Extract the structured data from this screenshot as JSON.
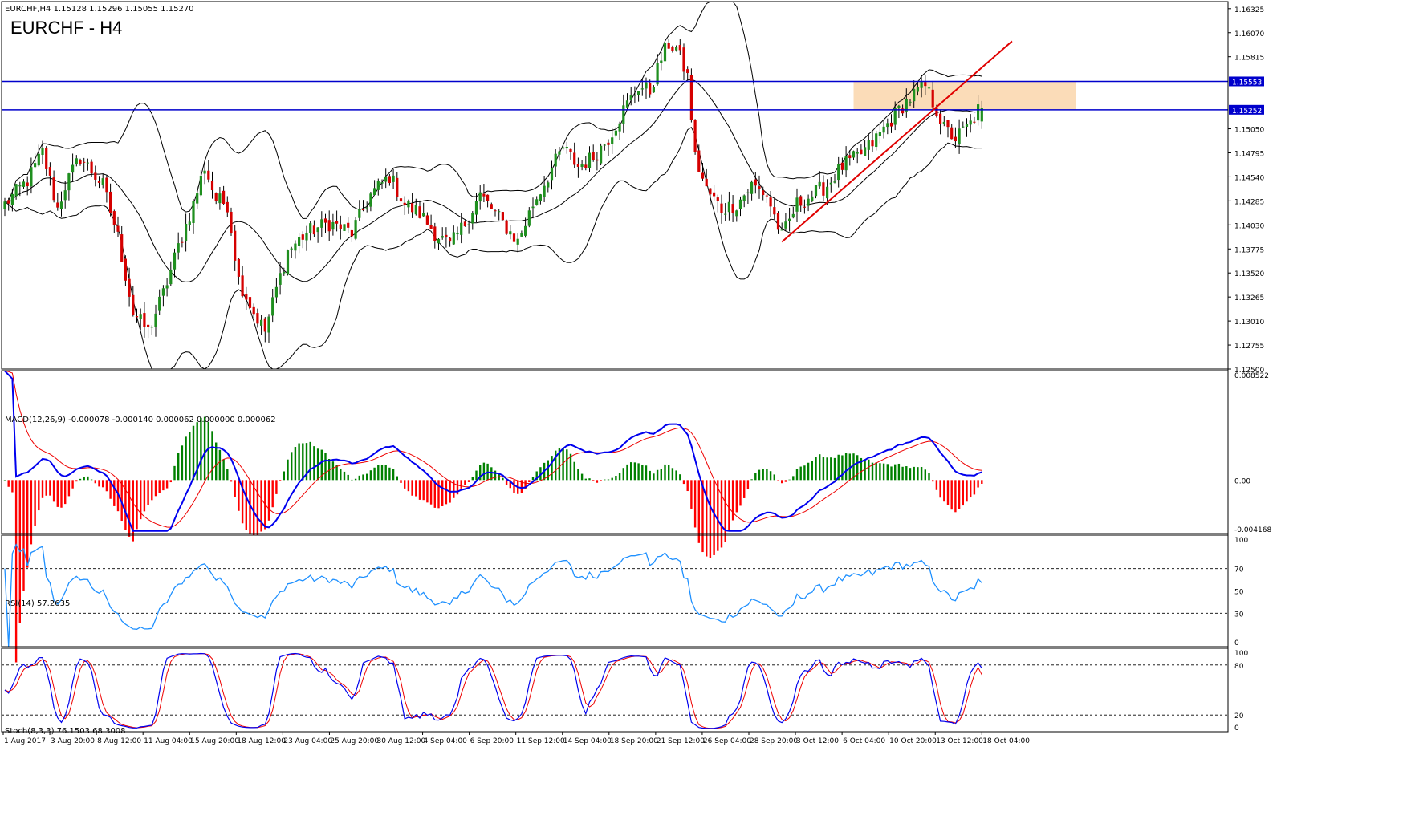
{
  "header": {
    "symbol_line": "EURCHF,H4  1.15128 1.15296 1.15055 1.15270",
    "big_title": "EURCHF - H4"
  },
  "panels": {
    "macd": {
      "label": "MACD(12,26,9) -0.000078 -0.000140 0.000062 0.000000 0.000062"
    },
    "rsi": {
      "label": "RSI(14) 57.2635"
    },
    "stoch": {
      "label": "Stoch(8,3,3) 76.1503 68.3008"
    }
  },
  "colors": {
    "bull_candle": "#1f8f1f",
    "bear_candle": "#d50000",
    "bands": "#000000",
    "hline": "#0000cc",
    "trendline": "#e00000",
    "zone": "#fbdcb8",
    "macd_main": "#0000ee",
    "macd_signal": "#ee0000",
    "hist_pos": "#008000",
    "hist_neg": "#ff0000",
    "rsi": "#1e90ff",
    "stoch_main": "#0000ee",
    "stoch_signal": "#ee0000"
  },
  "chart_data": {
    "type": "candlestick",
    "price_axis_ticks": [
      "1.16325",
      "1.16070",
      "1.15815",
      "1.15553",
      "1.15252",
      "1.15050",
      "1.14795",
      "1.14540",
      "1.14285",
      "1.14030",
      "1.13775",
      "1.13520",
      "1.13265",
      "1.13010",
      "1.12755",
      "1.12500"
    ],
    "price_range": [
      1.125,
      1.164
    ],
    "hlines": [
      {
        "price": 1.15553,
        "label": "1.15553"
      },
      {
        "price": 1.15252,
        "label": "1.15252"
      }
    ],
    "time_labels": [
      "1 Aug 2017",
      "3 Aug 20:00",
      "8 Aug 12:00",
      "11 Aug 04:00",
      "15 Aug 20:00",
      "18 Aug 12:00",
      "23 Aug 04:00",
      "25 Aug 20:00",
      "30 Aug 12:00",
      "4 Sep 04:00",
      "6 Sep 20:00",
      "11 Sep 12:00",
      "14 Sep 04:00",
      "18 Sep 20:00",
      "21 Sep 12:00",
      "26 Sep 04:00",
      "28 Sep 20:00",
      "3 Oct 12:00",
      "6 Oct 04:00",
      "10 Oct 20:00",
      "13 Oct 12:00",
      "18 Oct 04:00"
    ],
    "close_path": [
      [
        0,
        1.1425
      ],
      [
        6,
        1.145
      ],
      [
        10,
        1.148
      ],
      [
        14,
        1.142
      ],
      [
        16,
        1.1445
      ],
      [
        20,
        1.1475
      ],
      [
        26,
        1.1445
      ],
      [
        30,
        1.139
      ],
      [
        34,
        1.131
      ],
      [
        38,
        1.129
      ],
      [
        42,
        1.133
      ],
      [
        46,
        1.138
      ],
      [
        50,
        1.1425
      ],
      [
        53,
        1.1465
      ],
      [
        56,
        1.143
      ],
      [
        59,
        1.1425
      ],
      [
        62,
        1.1345
      ],
      [
        66,
        1.131
      ],
      [
        69,
        1.129
      ],
      [
        72,
        1.1335
      ],
      [
        75,
        1.1375
      ],
      [
        80,
        1.1395
      ],
      [
        86,
        1.1405
      ],
      [
        92,
        1.1395
      ],
      [
        97,
        1.1435
      ],
      [
        102,
        1.1455
      ],
      [
        106,
        1.1425
      ],
      [
        110,
        1.1415
      ],
      [
        114,
        1.1395
      ],
      [
        118,
        1.138
      ],
      [
        122,
        1.1405
      ],
      [
        126,
        1.1435
      ],
      [
        130,
        1.1415
      ],
      [
        134,
        1.1395
      ],
      [
        136,
        1.1385
      ],
      [
        140,
        1.1425
      ],
      [
        144,
        1.1455
      ],
      [
        148,
        1.1485
      ],
      [
        152,
        1.1465
      ],
      [
        156,
        1.1475
      ],
      [
        160,
        1.1495
      ],
      [
        164,
        1.1525
      ],
      [
        168,
        1.155
      ],
      [
        171,
        1.1545
      ],
      [
        174,
        1.158
      ],
      [
        176,
        1.1595
      ],
      [
        178,
        1.159
      ],
      [
        181,
        1.156
      ],
      [
        183,
        1.1475
      ],
      [
        186,
        1.144
      ],
      [
        190,
        1.142
      ],
      [
        194,
        1.1425
      ],
      [
        198,
        1.1445
      ],
      [
        202,
        1.1435
      ],
      [
        206,
        1.139
      ],
      [
        210,
        1.1425
      ],
      [
        214,
        1.1435
      ],
      [
        218,
        1.1445
      ],
      [
        222,
        1.1465
      ],
      [
        226,
        1.1475
      ],
      [
        230,
        1.149
      ],
      [
        234,
        1.151
      ],
      [
        238,
        1.153
      ],
      [
        242,
        1.1545
      ],
      [
        244,
        1.155
      ],
      [
        247,
        1.1525
      ],
      [
        249,
        1.1505
      ],
      [
        252,
        1.1495
      ],
      [
        256,
        1.151
      ],
      [
        258,
        1.1525
      ]
    ],
    "series": [
      {
        "name": "MACD(12,26,9)",
        "panel": "macd",
        "last": -7.8e-05
      },
      {
        "name": "RSI(14)",
        "panel": "rsi",
        "last": 57.2635
      },
      {
        "name": "Stoch(8,3,3)",
        "panel": "stoch",
        "last": 76.1503,
        "signal_last": 68.3008
      }
    ],
    "macd_axis": [
      "0.008522",
      "0.00",
      "-0.004168"
    ],
    "macd_range": [
      -0.004168,
      0.008522
    ],
    "rsi_axis": [
      "100",
      "70",
      "50",
      "30",
      "0"
    ],
    "rsi_levels": [
      70,
      50,
      30
    ],
    "stoch_axis": [
      "100",
      "80",
      "20",
      "0"
    ],
    "stoch_levels": [
      80,
      20
    ]
  }
}
